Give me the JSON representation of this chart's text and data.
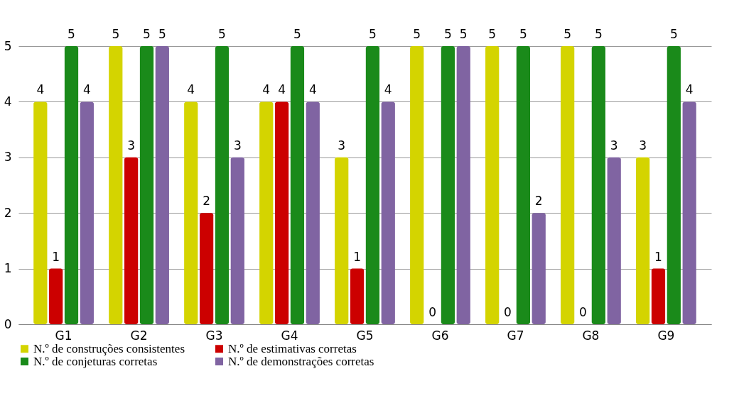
{
  "chart_data": {
    "type": "bar",
    "categories": [
      "G1",
      "G2",
      "G3",
      "G4",
      "G5",
      "G6",
      "G7",
      "G8",
      "G9"
    ],
    "series": [
      {
        "name": "N.º de construções consistentes",
        "color": "#d4d400",
        "values": [
          4,
          5,
          4,
          4,
          3,
          5,
          5,
          5,
          3
        ]
      },
      {
        "name": "N.º de estimativas corretas",
        "color": "#cc0000",
        "values": [
          1,
          3,
          2,
          4,
          1,
          0,
          0,
          0,
          1
        ]
      },
      {
        "name": "N.º de conjeturas corretas",
        "color": "#1a8a1a",
        "values": [
          5,
          5,
          5,
          5,
          5,
          5,
          5,
          5,
          5
        ]
      },
      {
        "name": "N.º de demonstrações corretas",
        "color": "#8064a2",
        "values": [
          4,
          5,
          3,
          4,
          4,
          5,
          2,
          3,
          4
        ]
      }
    ],
    "ylim": [
      0,
      5
    ],
    "yticks": [
      0,
      1,
      2,
      3,
      4,
      5
    ],
    "grid": "y",
    "legend": "bottom",
    "data_labels": true
  }
}
